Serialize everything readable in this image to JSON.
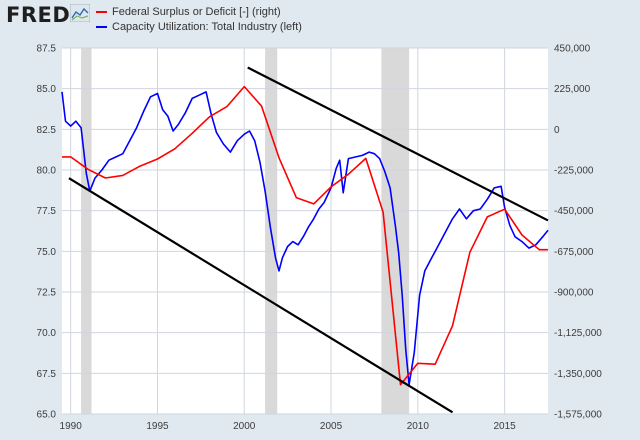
{
  "brand": {
    "name": "FRED"
  },
  "colors": {
    "red": "#ff0000",
    "blue": "#0000ff",
    "recession": "#d9d9d9",
    "trend": "#000000",
    "grid": "#cfd6dd"
  },
  "chart_data": {
    "type": "line",
    "legend": {
      "placement": "top-left",
      "entries": [
        {
          "label": "Federal Surplus or Deficit [-] (right)",
          "color": "#ff0000"
        },
        {
          "label": "Capacity Utilization: Total Industry (left)",
          "color": "#0000ff"
        }
      ]
    },
    "xlim": [
      1989.5,
      2017.5
    ],
    "x_ticks": [
      "1990",
      "1995",
      "2000",
      "2005",
      "2010",
      "2015"
    ],
    "left_axis": {
      "ylim": [
        65.0,
        87.5
      ],
      "ticks": [
        "65.0",
        "67.5",
        "70.0",
        "72.5",
        "75.0",
        "77.5",
        "80.0",
        "82.5",
        "85.0",
        "87.5"
      ]
    },
    "right_axis": {
      "ylim": [
        -1575000,
        450000
      ],
      "ticks": [
        "-1,575,000",
        "-1,350,000",
        "-1,125,000",
        "-900,000",
        "-675,000",
        "-450,000",
        "-225,000",
        "0",
        "225,000",
        "450,000"
      ]
    },
    "grid": true,
    "recessions": [
      [
        1990.6,
        1991.2
      ],
      [
        2001.2,
        2001.9
      ],
      [
        2007.9,
        2009.5
      ]
    ],
    "series": [
      {
        "name": "Capacity Utilization: Total Industry (left)",
        "axis": "left",
        "color": "#0000ff",
        "x": [
          1989.5,
          1989.7,
          1990.0,
          1990.3,
          1990.6,
          1990.9,
          1991.1,
          1991.4,
          1991.8,
          1992.2,
          1992.6,
          1993.0,
          1993.4,
          1993.8,
          1994.2,
          1994.6,
          1995.0,
          1995.3,
          1995.6,
          1995.9,
          1996.2,
          1996.6,
          1997.0,
          1997.4,
          1997.8,
          1998.1,
          1998.4,
          1998.8,
          1999.2,
          1999.6,
          2000.0,
          2000.3,
          2000.6,
          2000.9,
          2001.2,
          2001.5,
          2001.8,
          2002.0,
          2002.2,
          2002.5,
          2002.8,
          2003.1,
          2003.4,
          2003.7,
          2004.0,
          2004.3,
          2004.6,
          2005.0,
          2005.3,
          2005.5,
          2005.7,
          2006.0,
          2006.4,
          2006.8,
          2007.2,
          2007.5,
          2007.8,
          2008.1,
          2008.4,
          2008.7,
          2008.9,
          2009.1,
          2009.3,
          2009.5,
          2009.8,
          2010.1,
          2010.4,
          2010.8,
          2011.2,
          2011.6,
          2012.0,
          2012.4,
          2012.8,
          2013.2,
          2013.6,
          2014.0,
          2014.4,
          2014.8,
          2015.0,
          2015.3,
          2015.6,
          2016.0,
          2016.4,
          2016.8,
          2017.2,
          2017.5
        ],
        "y": [
          84.8,
          83.0,
          82.7,
          83.0,
          82.6,
          79.8,
          78.7,
          79.5,
          80.0,
          80.6,
          80.8,
          81.0,
          81.8,
          82.6,
          83.6,
          84.5,
          84.7,
          83.7,
          83.3,
          82.4,
          82.8,
          83.5,
          84.4,
          84.6,
          84.8,
          83.4,
          82.3,
          81.6,
          81.1,
          81.8,
          82.2,
          82.4,
          81.8,
          80.5,
          78.7,
          76.5,
          74.6,
          73.8,
          74.6,
          75.3,
          75.6,
          75.4,
          75.9,
          76.5,
          77.0,
          77.6,
          78.0,
          78.9,
          80.1,
          80.6,
          78.6,
          80.7,
          80.8,
          80.9,
          81.1,
          81.0,
          80.7,
          79.9,
          78.9,
          76.6,
          74.9,
          72.3,
          69.0,
          66.8,
          68.8,
          72.3,
          73.8,
          74.6,
          75.4,
          76.2,
          77.0,
          77.6,
          77.0,
          77.5,
          77.6,
          78.2,
          78.9,
          79.0,
          77.7,
          76.6,
          75.9,
          75.6,
          75.2,
          75.4,
          75.9,
          76.3
        ]
      },
      {
        "name": "Federal Surplus or Deficit [-] (right)",
        "axis": "right",
        "color": "#ff0000",
        "x": [
          1989.5,
          1990.0,
          1991.0,
          1992.0,
          1993.0,
          1994.0,
          1995.0,
          1996.0,
          1997.0,
          1998.0,
          1999.0,
          2000.0,
          2001.0,
          2002.0,
          2003.0,
          2004.0,
          2005.0,
          2006.0,
          2007.0,
          2008.0,
          2009.0,
          2010.0,
          2011.0,
          2012.0,
          2013.0,
          2014.0,
          2015.0,
          2016.0,
          2017.0,
          2017.5
        ],
        "y": [
          -152718,
          -152718,
          -221036,
          -269238,
          -255051,
          -203186,
          -163952,
          -107431,
          -21884,
          69270,
          125610,
          236241,
          128236,
          -157758,
          -377585,
          -412727,
          -318346,
          -248181,
          -160701,
          -458553,
          -1412688,
          -1294373,
          -1299599,
          -1087024,
          -679775,
          -484602,
          -441960,
          -584651,
          -665712,
          -665712
        ]
      }
    ],
    "trend_lines": [
      {
        "color": "#000000",
        "points": [
          [
            2000.2,
            86.3
          ],
          [
            2017.5,
            76.9
          ]
        ]
      },
      {
        "color": "#000000",
        "points": [
          [
            1989.9,
            79.5
          ],
          [
            2012.0,
            65.1
          ]
        ]
      }
    ]
  }
}
